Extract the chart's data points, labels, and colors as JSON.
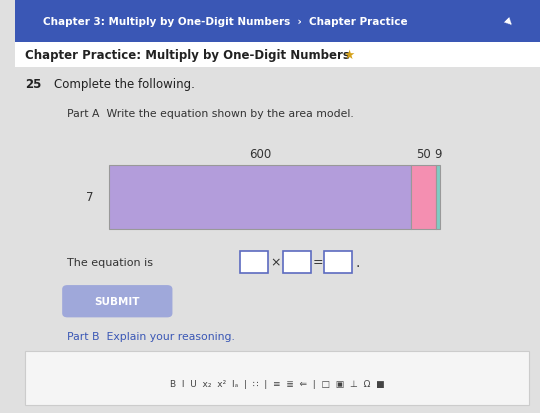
{
  "bg_color": "#e0e0e0",
  "top_bar_color": "#3a57b5",
  "top_bar_text": "Chapter 3: Multiply by One-Digit Numbers  ›  Chapter Practice",
  "top_bar_text_color": "#ffffff",
  "header_bg": "#ffffff",
  "header_text": "Chapter Practice: Multiply by One-Digit Numbers",
  "header_text_color": "#222222",
  "star_color": "#d4a017",
  "question_num": "25",
  "question_text": "Complete the following.",
  "part_a_text": "Part A  Write the equation shown by the area model.",
  "part_b_text": "Part B  Explain your reasoning.",
  "area_model": {
    "columns": [
      600,
      50,
      9
    ],
    "row_label": 7,
    "colors": [
      "#b39ddb",
      "#f48fb1",
      "#80cbc4"
    ]
  },
  "equation_text": "The equation is ",
  "submit_btn_color": "#9fa8da",
  "submit_btn_text": "SUBMIT",
  "submit_btn_text_color": "#ffffff",
  "toolbar_bg": "#f5f5f5",
  "toolbar_border": "#cccccc"
}
